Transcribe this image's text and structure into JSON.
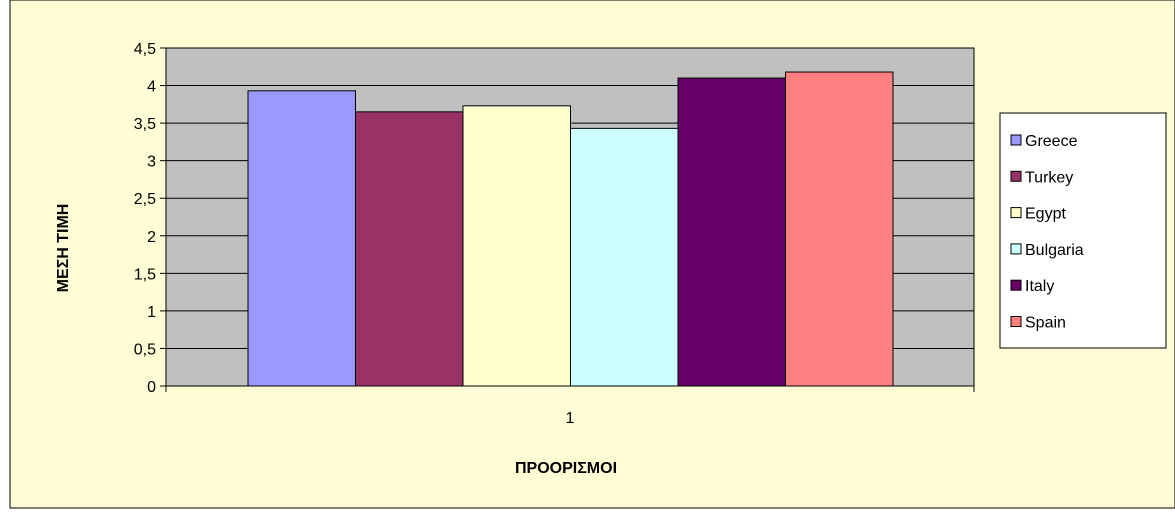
{
  "colors": {
    "card_bg": "#fffdd5",
    "plot_bg": "#c0c0c0",
    "gridline": "#000000",
    "border": "#000000"
  },
  "chart_data": {
    "type": "bar",
    "categories": [
      "1"
    ],
    "xlabel": "ΠΡΟΟΡΙΣΜΟΙ",
    "ylabel": "ΜΕΣΗ ΤΙΜΗ",
    "ylim": [
      0,
      4.5
    ],
    "yticks": [
      {
        "value": 0,
        "label": "0"
      },
      {
        "value": 0.5,
        "label": "0,5"
      },
      {
        "value": 1,
        "label": "1"
      },
      {
        "value": 1.5,
        "label": "1,5"
      },
      {
        "value": 2,
        "label": "2"
      },
      {
        "value": 2.5,
        "label": "2,5"
      },
      {
        "value": 3,
        "label": "3"
      },
      {
        "value": 3.5,
        "label": "3,5"
      },
      {
        "value": 4,
        "label": "4"
      },
      {
        "value": 4.5,
        "label": "4,5"
      }
    ],
    "grid": true,
    "legend": "right",
    "series": [
      {
        "name": "Greece",
        "color": "#9999ff",
        "values": [
          3.93
        ]
      },
      {
        "name": "Turkey",
        "color": "#993366",
        "values": [
          3.65
        ]
      },
      {
        "name": "Egypt",
        "color": "#ffffcc",
        "values": [
          3.73
        ]
      },
      {
        "name": "Bulgaria",
        "color": "#ccffff",
        "values": [
          3.43
        ]
      },
      {
        "name": "Italy",
        "color": "#660066",
        "values": [
          4.1
        ]
      },
      {
        "name": "Spain",
        "color": "#ff8080",
        "values": [
          4.18
        ]
      }
    ]
  }
}
